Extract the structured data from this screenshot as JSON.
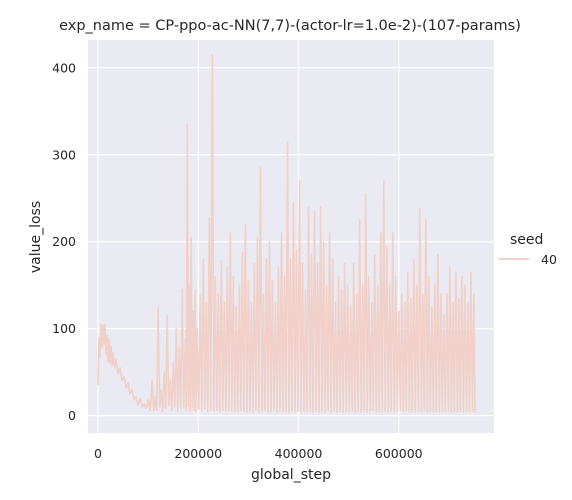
{
  "chart_data": {
    "type": "line",
    "title": "exp_name = CP-ppo-ac-NN(7,7)-(actor-lr=1.0e-2)-(107-params)",
    "xlabel": "global_step",
    "ylabel": "value_loss",
    "xlim": [
      -20000,
      790000
    ],
    "ylim": [
      -20,
      432
    ],
    "xticks": [
      0,
      200000,
      400000,
      600000
    ],
    "xtick_labels": [
      "0",
      "200000",
      "400000",
      "600000"
    ],
    "yticks": [
      0,
      100,
      200,
      300,
      400
    ],
    "ytick_labels": [
      "0",
      "100",
      "200",
      "300",
      "400"
    ],
    "grid": true,
    "legend": {
      "title": "seed",
      "placement": "right",
      "entries": [
        "40"
      ]
    },
    "colors": {
      "plot_background": "#eaeaf2",
      "grid": "#ffffff",
      "line": "#f0d0c8"
    },
    "series": [
      {
        "name": "40",
        "points": [
          [
            0,
            35
          ],
          [
            2000,
            90
          ],
          [
            4000,
            68
          ],
          [
            6000,
            105
          ],
          [
            8000,
            78
          ],
          [
            10000,
            104
          ],
          [
            12000,
            82
          ],
          [
            14000,
            105
          ],
          [
            16000,
            70
          ],
          [
            18000,
            92
          ],
          [
            20000,
            62
          ],
          [
            22000,
            88
          ],
          [
            24000,
            60
          ],
          [
            26000,
            80
          ],
          [
            28000,
            58
          ],
          [
            30000,
            72
          ],
          [
            33000,
            55
          ],
          [
            36000,
            65
          ],
          [
            40000,
            48
          ],
          [
            44000,
            55
          ],
          [
            48000,
            40
          ],
          [
            52000,
            45
          ],
          [
            56000,
            32
          ],
          [
            60000,
            38
          ],
          [
            64000,
            25
          ],
          [
            68000,
            30
          ],
          [
            72000,
            18
          ],
          [
            76000,
            22
          ],
          [
            80000,
            12
          ],
          [
            84000,
            20
          ],
          [
            88000,
            10
          ],
          [
            92000,
            14
          ],
          [
            96000,
            8
          ],
          [
            100000,
            18
          ],
          [
            104000,
            6
          ],
          [
            108000,
            40
          ],
          [
            111000,
            5
          ],
          [
            114000,
            22
          ],
          [
            117000,
            6
          ],
          [
            120000,
            125
          ],
          [
            123000,
            10
          ],
          [
            126000,
            30
          ],
          [
            129000,
            5
          ],
          [
            132000,
            50
          ],
          [
            135000,
            8
          ],
          [
            138000,
            115
          ],
          [
            141000,
            12
          ],
          [
            144000,
            40
          ],
          [
            147000,
            6
          ],
          [
            150000,
            60
          ],
          [
            153000,
            10
          ],
          [
            156000,
            100
          ],
          [
            159000,
            5
          ],
          [
            162000,
            78
          ],
          [
            165000,
            8
          ],
          [
            168000,
            145
          ],
          [
            171000,
            10
          ],
          [
            174000,
            88
          ],
          [
            176000,
            6
          ],
          [
            178000,
            335
          ],
          [
            180000,
            12
          ],
          [
            182000,
            150
          ],
          [
            184000,
            5
          ],
          [
            186000,
            205
          ],
          [
            188000,
            10
          ],
          [
            190000,
            120
          ],
          [
            192000,
            6
          ],
          [
            194000,
            145
          ],
          [
            196000,
            5
          ],
          [
            198000,
            100
          ],
          [
            201000,
            8
          ],
          [
            204000,
            138
          ],
          [
            207000,
            5
          ],
          [
            210000,
            180
          ],
          [
            213000,
            8
          ],
          [
            216000,
            130
          ],
          [
            219000,
            4
          ],
          [
            222000,
            228
          ],
          [
            225000,
            6
          ],
          [
            228000,
            415
          ],
          [
            231000,
            5
          ],
          [
            234000,
            160
          ],
          [
            237000,
            6
          ],
          [
            240000,
            140
          ],
          [
            243000,
            4
          ],
          [
            246000,
            178
          ],
          [
            249000,
            6
          ],
          [
            252000,
            130
          ],
          [
            255000,
            5
          ],
          [
            258000,
            170
          ],
          [
            261000,
            6
          ],
          [
            264000,
            210
          ],
          [
            267000,
            5
          ],
          [
            270000,
            160
          ],
          [
            273000,
            4
          ],
          [
            276000,
            125
          ],
          [
            279000,
            5
          ],
          [
            282000,
            150
          ],
          [
            285000,
            6
          ],
          [
            288000,
            188
          ],
          [
            291000,
            5
          ],
          [
            294000,
            220
          ],
          [
            297000,
            4
          ],
          [
            300000,
            155
          ],
          [
            303000,
            5
          ],
          [
            306000,
            130
          ],
          [
            309000,
            4
          ],
          [
            312000,
            175
          ],
          [
            315000,
            6
          ],
          [
            318000,
            205
          ],
          [
            321000,
            4
          ],
          [
            324000,
            285
          ],
          [
            327000,
            5
          ],
          [
            330000,
            140
          ],
          [
            333000,
            6
          ],
          [
            336000,
            180
          ],
          [
            339000,
            4
          ],
          [
            342000,
            200
          ],
          [
            345000,
            5
          ],
          [
            348000,
            155
          ],
          [
            351000,
            6
          ],
          [
            354000,
            130
          ],
          [
            357000,
            4
          ],
          [
            360000,
            170
          ],
          [
            363000,
            5
          ],
          [
            366000,
            210
          ],
          [
            369000,
            4
          ],
          [
            372000,
            160
          ],
          [
            375000,
            5
          ],
          [
            378000,
            315
          ],
          [
            381000,
            3
          ],
          [
            384000,
            180
          ],
          [
            387000,
            5
          ],
          [
            390000,
            245
          ],
          [
            393000,
            4
          ],
          [
            396000,
            190
          ],
          [
            399000,
            5
          ],
          [
            402000,
            270
          ],
          [
            405000,
            4
          ],
          [
            408000,
            175
          ],
          [
            411000,
            5
          ],
          [
            414000,
            145
          ],
          [
            417000,
            4
          ],
          [
            420000,
            240
          ],
          [
            423000,
            5
          ],
          [
            426000,
            185
          ],
          [
            429000,
            4
          ],
          [
            432000,
            235
          ],
          [
            435000,
            5
          ],
          [
            438000,
            175
          ],
          [
            441000,
            4
          ],
          [
            444000,
            240
          ],
          [
            447000,
            5
          ],
          [
            450000,
            200
          ],
          [
            453000,
            4
          ],
          [
            456000,
            150
          ],
          [
            459000,
            6
          ],
          [
            462000,
            210
          ],
          [
            465000,
            4
          ],
          [
            468000,
            180
          ],
          [
            471000,
            5
          ],
          [
            474000,
            130
          ],
          [
            477000,
            4
          ],
          [
            480000,
            160
          ],
          [
            483000,
            5
          ],
          [
            486000,
            145
          ],
          [
            489000,
            4
          ],
          [
            492000,
            175
          ],
          [
            495000,
            5
          ],
          [
            498000,
            150
          ],
          [
            501000,
            4
          ],
          [
            504000,
            125
          ],
          [
            507000,
            5
          ],
          [
            510000,
            175
          ],
          [
            513000,
            4
          ],
          [
            516000,
            140
          ],
          [
            519000,
            5
          ],
          [
            522000,
            225
          ],
          [
            525000,
            4
          ],
          [
            528000,
            150
          ],
          [
            531000,
            5
          ],
          [
            534000,
            255
          ],
          [
            537000,
            4
          ],
          [
            540000,
            160
          ],
          [
            543000,
            5
          ],
          [
            546000,
            130
          ],
          [
            549000,
            6
          ],
          [
            552000,
            185
          ],
          [
            555000,
            4
          ],
          [
            558000,
            150
          ],
          [
            561000,
            5
          ],
          [
            564000,
            210
          ],
          [
            567000,
            4
          ],
          [
            570000,
            270
          ],
          [
            573000,
            5
          ],
          [
            576000,
            195
          ],
          [
            579000,
            4
          ],
          [
            582000,
            150
          ],
          [
            585000,
            5
          ],
          [
            588000,
            210
          ],
          [
            591000,
            4
          ],
          [
            594000,
            160
          ],
          [
            597000,
            5
          ],
          [
            600000,
            120
          ],
          [
            603000,
            6
          ],
          [
            606000,
            140
          ],
          [
            609000,
            4
          ],
          [
            612000,
            130
          ],
          [
            615000,
            6
          ],
          [
            618000,
            165
          ],
          [
            621000,
            4
          ],
          [
            624000,
            135
          ],
          [
            627000,
            5
          ],
          [
            630000,
            180
          ],
          [
            633000,
            4
          ],
          [
            636000,
            150
          ],
          [
            639000,
            5
          ],
          [
            642000,
            238
          ],
          [
            645000,
            4
          ],
          [
            648000,
            140
          ],
          [
            651000,
            5
          ],
          [
            654000,
            225
          ],
          [
            657000,
            4
          ],
          [
            660000,
            160
          ],
          [
            663000,
            5
          ],
          [
            666000,
            125
          ],
          [
            669000,
            4
          ],
          [
            672000,
            150
          ],
          [
            675000,
            5
          ],
          [
            678000,
            185
          ],
          [
            681000,
            4
          ],
          [
            684000,
            140
          ],
          [
            687000,
            5
          ],
          [
            690000,
            115
          ],
          [
            693000,
            4
          ],
          [
            696000,
            140
          ],
          [
            699000,
            5
          ],
          [
            702000,
            170
          ],
          [
            705000,
            4
          ],
          [
            708000,
            130
          ],
          [
            711000,
            5
          ],
          [
            714000,
            165
          ],
          [
            717000,
            4
          ],
          [
            720000,
            135
          ],
          [
            723000,
            5
          ],
          [
            726000,
            160
          ],
          [
            729000,
            4
          ],
          [
            732000,
            150
          ],
          [
            735000,
            5
          ],
          [
            738000,
            130
          ],
          [
            741000,
            4
          ],
          [
            744000,
            165
          ],
          [
            747000,
            5
          ],
          [
            750000,
            140
          ],
          [
            752000,
            3
          ]
        ]
      }
    ]
  }
}
